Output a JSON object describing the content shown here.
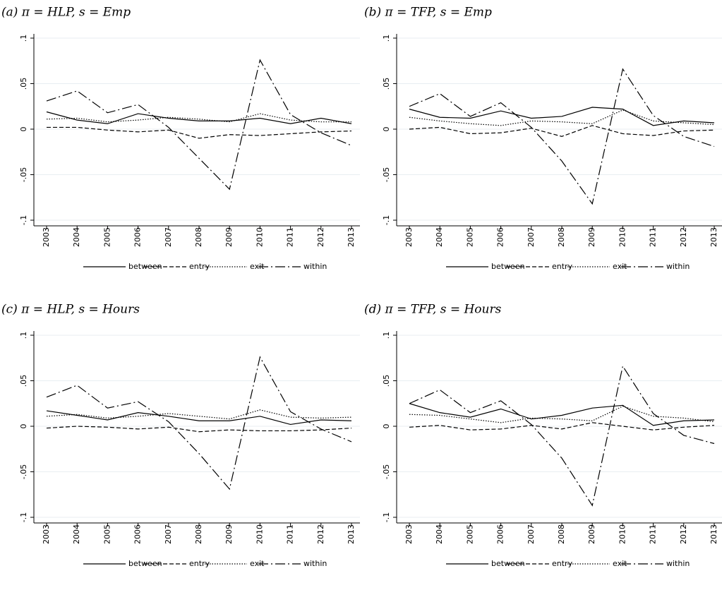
{
  "chart_data": [
    {
      "type": "line",
      "title": "(a) π = HLP, s = Emp",
      "categories": [
        "2003",
        "2004",
        "2005",
        "2006",
        "2007",
        "2008",
        "2009",
        "2010",
        "2011",
        "2012",
        "2013"
      ],
      "ylim": [
        -0.1,
        0.1
      ],
      "yticks": [
        {
          "value": -0.1,
          "label": "-.1"
        },
        {
          "value": -0.05,
          "label": "-.05"
        },
        0,
        {
          "value": 0.05,
          "label": ".05"
        },
        {
          "value": 0.1,
          "label": ".1"
        }
      ],
      "grid": true,
      "series": [
        {
          "name": "between",
          "color": "#000000",
          "style": "solid",
          "values": [
            0.019,
            0.01,
            0.006,
            0.017,
            0.012,
            0.009,
            0.009,
            0.012,
            0.006,
            0.012,
            0.006
          ]
        },
        {
          "name": "entry",
          "color": "#000000",
          "style": "dashed",
          "values": [
            0.002,
            0.002,
            -0.001,
            -0.003,
            -0.001,
            -0.01,
            -0.006,
            -0.007,
            -0.005,
            -0.003,
            -0.002
          ]
        },
        {
          "name": "exit",
          "color": "#000000",
          "style": "dotted",
          "values": [
            0.011,
            0.012,
            0.008,
            0.01,
            0.013,
            0.011,
            0.008,
            0.017,
            0.01,
            0.008,
            0.008
          ]
        },
        {
          "name": "within",
          "color": "#000000",
          "style": "dashdot",
          "values": [
            0.031,
            0.042,
            0.018,
            0.027,
            0.002,
            -0.032,
            -0.066,
            0.076,
            0.016,
            -0.004,
            -0.018
          ]
        }
      ]
    },
    {
      "type": "line",
      "title": "(b) π = TFP, s = Emp",
      "categories": [
        "2003",
        "2004",
        "2005",
        "2006",
        "2007",
        "2008",
        "2009",
        "2010",
        "2011",
        "2012",
        "2013"
      ],
      "ylim": [
        -0.1,
        0.1
      ],
      "yticks": [
        {
          "value": -0.1,
          "label": "-.1"
        },
        {
          "value": -0.05,
          "label": "-.05"
        },
        0,
        {
          "value": 0.05,
          "label": ".05"
        },
        {
          "value": 0.1,
          "label": ".1"
        }
      ],
      "grid": true,
      "series": [
        {
          "name": "between",
          "color": "#000000",
          "style": "solid",
          "values": [
            0.022,
            0.013,
            0.012,
            0.02,
            0.012,
            0.014,
            0.024,
            0.022,
            0.004,
            0.009,
            0.007
          ]
        },
        {
          "name": "entry",
          "color": "#000000",
          "style": "dashed",
          "values": [
            0.0,
            0.002,
            -0.005,
            -0.004,
            0.001,
            -0.008,
            0.004,
            -0.005,
            -0.007,
            -0.002,
            -0.001
          ]
        },
        {
          "name": "exit",
          "color": "#000000",
          "style": "dotted",
          "values": [
            0.013,
            0.009,
            0.006,
            0.004,
            0.009,
            0.008,
            0.006,
            0.021,
            0.009,
            0.007,
            0.005
          ]
        },
        {
          "name": "within",
          "color": "#000000",
          "style": "dashdot",
          "values": [
            0.025,
            0.039,
            0.014,
            0.029,
            0.002,
            -0.035,
            -0.082,
            0.066,
            0.015,
            -0.008,
            -0.019
          ]
        }
      ]
    },
    {
      "type": "line",
      "title": "(c) π = HLP, s = Hours",
      "categories": [
        "2003",
        "2004",
        "2005",
        "2006",
        "2007",
        "2008",
        "2009",
        "2010",
        "2011",
        "2012",
        "2013"
      ],
      "ylim": [
        -0.1,
        0.1
      ],
      "yticks": [
        {
          "value": -0.1,
          "label": "-.1"
        },
        {
          "value": -0.05,
          "label": "-.05"
        },
        0,
        {
          "value": 0.05,
          "label": ".05"
        },
        {
          "value": 0.1,
          "label": ".1"
        }
      ],
      "grid": true,
      "series": [
        {
          "name": "between",
          "color": "#000000",
          "style": "solid",
          "values": [
            0.017,
            0.012,
            0.007,
            0.015,
            0.011,
            0.006,
            0.006,
            0.011,
            0.002,
            0.007,
            0.006
          ]
        },
        {
          "name": "entry",
          "color": "#000000",
          "style": "dashed",
          "values": [
            -0.002,
            0.0,
            -0.001,
            -0.003,
            -0.001,
            -0.006,
            -0.004,
            -0.005,
            -0.005,
            -0.004,
            -0.002
          ]
        },
        {
          "name": "exit",
          "color": "#000000",
          "style": "dotted",
          "values": [
            0.011,
            0.013,
            0.009,
            0.011,
            0.014,
            0.011,
            0.008,
            0.018,
            0.01,
            0.009,
            0.01
          ]
        },
        {
          "name": "within",
          "color": "#000000",
          "style": "dashdot",
          "values": [
            0.032,
            0.045,
            0.02,
            0.027,
            0.005,
            -0.03,
            -0.069,
            0.076,
            0.016,
            -0.003,
            -0.017
          ]
        }
      ]
    },
    {
      "type": "line",
      "title": "(d) π = TFP, s = Hours",
      "categories": [
        "2003",
        "2004",
        "2005",
        "2006",
        "2007",
        "2008",
        "2009",
        "2010",
        "2011",
        "2012",
        "2013"
      ],
      "ylim": [
        -0.1,
        0.1
      ],
      "yticks": [
        {
          "value": -0.1,
          "label": "-.1"
        },
        {
          "value": -0.05,
          "label": "-.05"
        },
        0,
        {
          "value": 0.05,
          "label": ".05"
        },
        {
          "value": 0.1,
          "label": ".1"
        }
      ],
      "grid": true,
      "series": [
        {
          "name": "between",
          "color": "#000000",
          "style": "solid",
          "values": [
            0.025,
            0.015,
            0.01,
            0.019,
            0.008,
            0.012,
            0.02,
            0.023,
            0.001,
            0.006,
            0.007
          ]
        },
        {
          "name": "entry",
          "color": "#000000",
          "style": "dashed",
          "values": [
            -0.001,
            0.001,
            -0.004,
            -0.003,
            0.001,
            -0.003,
            0.004,
            0.0,
            -0.004,
            -0.001,
            0.001
          ]
        },
        {
          "name": "exit",
          "color": "#000000",
          "style": "dotted",
          "values": [
            0.013,
            0.012,
            0.008,
            0.004,
            0.009,
            0.008,
            0.006,
            0.022,
            0.011,
            0.009,
            0.005
          ]
        },
        {
          "name": "within",
          "color": "#000000",
          "style": "dashdot",
          "values": [
            0.025,
            0.04,
            0.015,
            0.028,
            0.002,
            -0.035,
            -0.087,
            0.066,
            0.014,
            -0.01,
            -0.019
          ]
        }
      ]
    }
  ]
}
